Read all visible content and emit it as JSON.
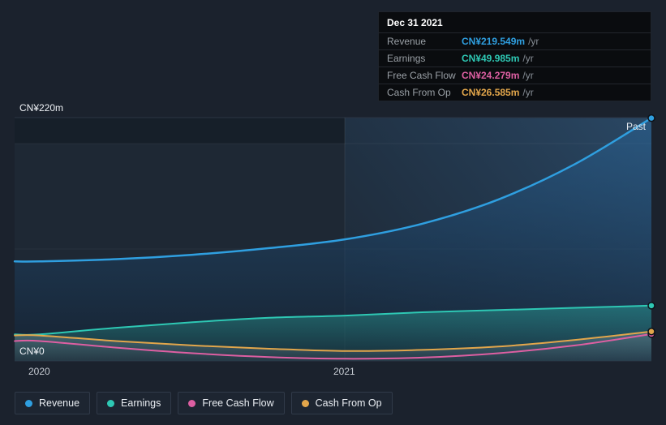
{
  "y_axis": {
    "max_label": "CN¥220m",
    "zero_label": "CN¥0"
  },
  "x_axis": {
    "ticks": [
      "2020",
      "2021"
    ]
  },
  "past_label": "Past",
  "tooltip": {
    "title": "Dec 31 2021",
    "rows": [
      {
        "label": "Revenue",
        "value": "CN¥219.549m",
        "unit": "/yr"
      },
      {
        "label": "Earnings",
        "value": "CN¥49.985m",
        "unit": "/yr"
      },
      {
        "label": "Free Cash Flow",
        "value": "CN¥24.279m",
        "unit": "/yr"
      },
      {
        "label": "Cash From Op",
        "value": "CN¥26.585m",
        "unit": "/yr"
      }
    ]
  },
  "legend": {
    "items": [
      "Revenue",
      "Earnings",
      "Free Cash Flow",
      "Cash From Op"
    ]
  },
  "chart_data": {
    "type": "line",
    "title": "Past earnings and revenue history",
    "x": [
      0,
      0.25,
      0.5,
      0.75,
      1,
      1.25,
      1.5,
      1.75,
      2
    ],
    "x_tick_positions": [
      0,
      1
    ],
    "x_tick_labels": [
      "2020",
      "2021"
    ],
    "ylim": [
      0,
      220
    ],
    "y_unit": "CN¥ millions",
    "legend_position": "bottom-left",
    "series": [
      {
        "name": "Revenue",
        "color": "#2f9fe0",
        "fill": "revenue",
        "values": [
          90,
          92,
          96,
          102,
          110,
          124,
          146,
          178,
          219.549
        ]
      },
      {
        "name": "Earnings",
        "color": "#2ec8b4",
        "fill": "earnings",
        "values": [
          24,
          30,
          35,
          39,
          41,
          44,
          46,
          48,
          49.985
        ]
      },
      {
        "name": "Free Cash Flow",
        "color": "#dd5fa2",
        "fill": "none",
        "values": [
          18,
          12,
          7,
          3.5,
          2,
          3,
          7,
          14,
          24.279
        ]
      },
      {
        "name": "Cash From Op",
        "color": "#e2a64b",
        "fill": "gray",
        "values": [
          23,
          18,
          14,
          11,
          9,
          10,
          13,
          19,
          26.585
        ]
      }
    ]
  }
}
